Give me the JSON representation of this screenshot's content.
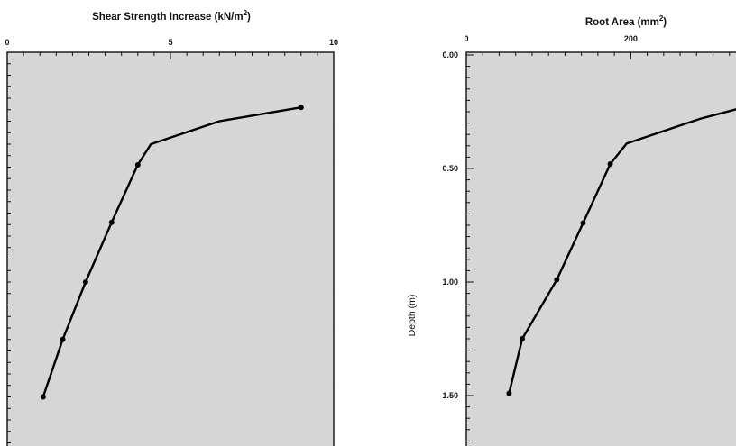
{
  "chart_data": [
    {
      "type": "line",
      "title": "Shear Strength Increase (kN/m²)",
      "title_main": "Shear Strength Increase (kN/m",
      "title_sup": "2",
      "title_end": ")",
      "xlabel": "Shear Strength Increase (kN/m²)",
      "ylabel": "",
      "x_axis_position": "top",
      "xlim": [
        0,
        10
      ],
      "ylim": [
        0,
        1.65
      ],
      "y_inverted": true,
      "x_ticks": [
        0,
        5,
        10
      ],
      "x_tick_labels": [
        "0",
        "5",
        "10"
      ],
      "y_ticks": [],
      "y_tick_labels": [],
      "grid": false,
      "series": [
        {
          "x": [
            9.0,
            6.5,
            4.4,
            4.0,
            3.2,
            2.4,
            1.7,
            1.1
          ],
          "y": [
            0.24,
            0.3,
            0.4,
            0.49,
            0.74,
            1.0,
            1.25,
            1.5
          ],
          "markers_at": [
            true,
            false,
            false,
            true,
            true,
            true,
            true,
            true
          ]
        }
      ]
    },
    {
      "type": "line",
      "title": "Root Area (mm²)",
      "title_main": "Root Area (mm",
      "title_sup": "2",
      "title_end": ")",
      "xlabel": "Root Area (mm²)",
      "ylabel": "Depth (m)",
      "x_axis_position": "top",
      "xlim": [
        0,
        340
      ],
      "ylim": [
        0,
        1.65
      ],
      "y_inverted": true,
      "x_ticks": [
        0,
        200
      ],
      "x_tick_labels": [
        "0",
        "200"
      ],
      "y_ticks": [
        0,
        0.5,
        1.0,
        1.5
      ],
      "y_tick_labels": [
        "0.00",
        "0.50",
        "1.00",
        "1.50"
      ],
      "grid": false,
      "series": [
        {
          "x": [
            338,
            285,
            195,
            175,
            142,
            110,
            68,
            52
          ],
          "y": [
            0.23,
            0.28,
            0.39,
            0.48,
            0.74,
            0.99,
            1.25,
            1.49
          ],
          "markers_at": [
            true,
            false,
            false,
            true,
            true,
            true,
            true,
            true
          ]
        }
      ]
    }
  ]
}
